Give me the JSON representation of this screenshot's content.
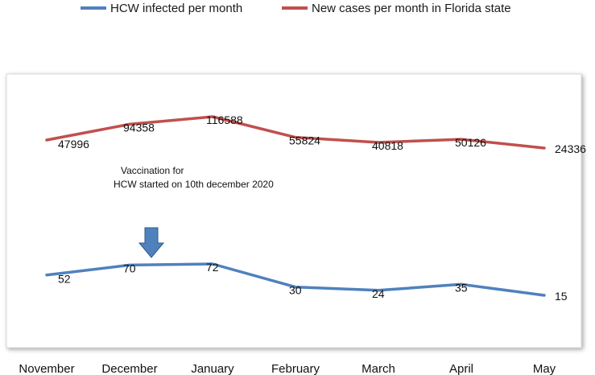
{
  "chart_data": {
    "type": "line",
    "categories": [
      "November",
      "December",
      "January",
      "February",
      "March",
      "April",
      "May"
    ],
    "series": [
      {
        "name": "HCW infected per month",
        "color": "#4f81bd",
        "values": [
          52,
          70,
          72,
          30,
          24,
          35,
          15
        ],
        "labels": [
          "52",
          "70",
          "72",
          "30",
          "24",
          "35",
          "15"
        ]
      },
      {
        "name": "New cases per month in Florida state",
        "color": "#c0504d",
        "values": [
          47996,
          94358,
          116588,
          55824,
          40818,
          50126,
          24336
        ],
        "labels": [
          "47996",
          "94358",
          "116588",
          "55824",
          "40818",
          "50126",
          "24336"
        ]
      }
    ],
    "legend_position": "top",
    "grid": false,
    "annotation": {
      "line1": "Vaccination for",
      "line2": "HCW started on 10th december 2020",
      "marker": "down-arrow",
      "marker_color": "#4f81bd",
      "category": "December"
    }
  }
}
